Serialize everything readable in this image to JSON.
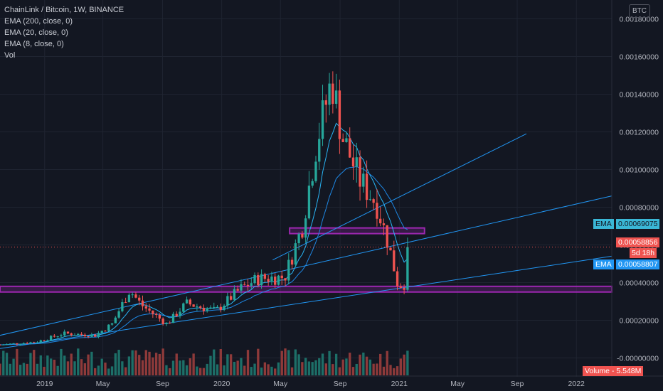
{
  "legend": {
    "symbol": "ChainLink / Bitcoin, 1W, BINANCE",
    "ema200": "EMA (200, close, 0)",
    "ema20": "EMA (20, close, 0)",
    "ema8": "EMA (8, close, 0)",
    "vol": "Vol"
  },
  "currency_button": "BTC",
  "tags": {
    "ema_label": "EMA",
    "ema_fast_value": "0.00069075",
    "ema_slow_value": "0.00058807",
    "last_price": "0.00058856",
    "countdown": "5d 18h",
    "volume": "Volume - 5.548M"
  },
  "colors": {
    "background": "#131722",
    "grid": "#1f2431",
    "up": "#26a69a",
    "down": "#ef5350",
    "up_volume": "#1d6f68",
    "down_volume": "#8e3a3a",
    "trendline": "#2196f3",
    "support_zone": "#9c27b0"
  },
  "chart_data": {
    "type": "candlestick",
    "timeframe": "1W",
    "exchange": "BINANCE",
    "y_tick_labels": [
      "-0.00000000",
      "0.00020000",
      "0.00040000",
      "0.00060000",
      "0.00080000",
      "0.00100000",
      "0.00120000",
      "0.00140000",
      "0.00160000",
      "0.00180000"
    ],
    "y_tick_values": [
      0,
      0.0002,
      0.0004,
      0.0006,
      0.0008,
      0.001,
      0.0012,
      0.0014,
      0.0016,
      0.0018
    ],
    "x_tick_labels": [
      "2019",
      "May",
      "Sep",
      "2020",
      "May",
      "Sep",
      "2021",
      "May",
      "Sep",
      "2022"
    ],
    "x_tick_dates": [
      "2019-01-01",
      "2019-05-01",
      "2019-09-01",
      "2020-01-01",
      "2020-05-01",
      "2020-09-01",
      "2021-01-01",
      "2021-05-01",
      "2021-09-01",
      "2022-01-01"
    ],
    "x_range": [
      "2018-10-01",
      "2022-03-15"
    ],
    "y_range": [
      -0.0001,
      0.0019
    ],
    "grid": true,
    "price_anchors": [
      {
        "date": "2018-10-01",
        "price": 7e-05
      },
      {
        "date": "2018-12-15",
        "price": 8.5e-05
      },
      {
        "date": "2019-02-10",
        "price": 0.00013
      },
      {
        "date": "2019-04-15",
        "price": 0.00012
      },
      {
        "date": "2019-05-20",
        "price": 0.00018
      },
      {
        "date": "2019-06-25",
        "price": 0.00036
      },
      {
        "date": "2019-07-20",
        "price": 0.00028
      },
      {
        "date": "2019-09-10",
        "price": 0.00018
      },
      {
        "date": "2019-10-20",
        "price": 0.00029
      },
      {
        "date": "2019-12-20",
        "price": 0.00025
      },
      {
        "date": "2020-02-10",
        "price": 0.00037
      },
      {
        "date": "2020-03-15",
        "price": 0.00042
      },
      {
        "date": "2020-05-10",
        "price": 0.00043
      },
      {
        "date": "2020-06-15",
        "price": 0.0007
      },
      {
        "date": "2020-07-15",
        "price": 0.00115
      },
      {
        "date": "2020-08-15",
        "price": 0.00148
      },
      {
        "date": "2020-09-05",
        "price": 0.00118
      },
      {
        "date": "2020-10-10",
        "price": 0.00095
      },
      {
        "date": "2020-11-15",
        "price": 0.00082
      },
      {
        "date": "2020-12-10",
        "price": 0.0006
      },
      {
        "date": "2020-12-28",
        "price": 0.0004
      },
      {
        "date": "2021-01-10",
        "price": 0.00038
      },
      {
        "date": "2021-01-24",
        "price": 0.00059
      }
    ],
    "ema_fast_last": 0.00069075,
    "ema_slow_last": 0.00058807,
    "last_price": 0.00058856,
    "volume_last": "5.548M",
    "zones": [
      {
        "from": "2020-05-20",
        "to": "2021-02-22",
        "low": 0.00066,
        "high": 0.00069
      },
      {
        "from": "2018-10-01",
        "to": "2022-03-15",
        "low": 0.00035,
        "high": 0.00038
      }
    ],
    "trendlines": [
      {
        "from": [
          "2018-10-01",
          0.00012
        ],
        "to": [
          "2022-03-15",
          0.00086
        ]
      },
      {
        "from": [
          "2018-10-01",
          5e-05
        ],
        "to": [
          "2022-03-15",
          0.00054
        ]
      },
      {
        "from": [
          "2020-04-15",
          0.00052
        ],
        "to": [
          "2021-09-20",
          0.00119
        ]
      }
    ]
  }
}
